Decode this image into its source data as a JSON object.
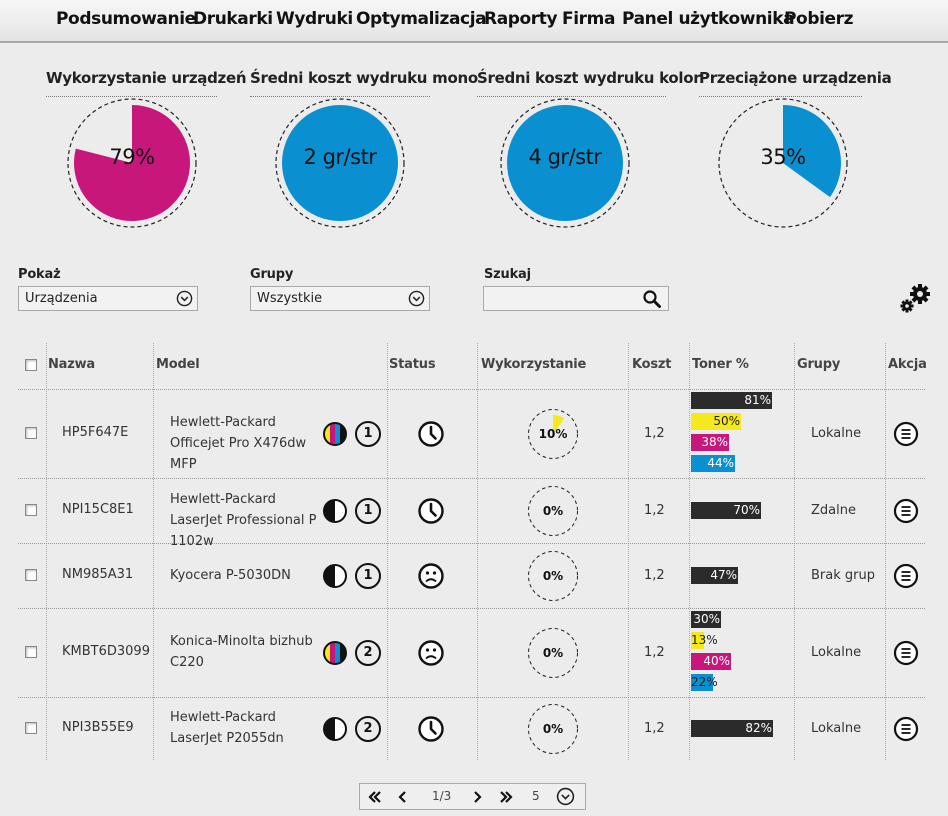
{
  "nav": [
    "Podsumowanie",
    "Drukarki",
    "Wydruki",
    "Optymalizacja",
    "Raporty",
    "Firma",
    "Panel użytkownika",
    "Pobierz"
  ],
  "kpis": [
    {
      "title": "Wykorzystanie urządzeń",
      "value": "79%",
      "fraction": 0.79,
      "color": "#c7177b",
      "kind": "pie"
    },
    {
      "title": "Średni koszt wydruku mono",
      "value": "2 gr/str",
      "kind": "full",
      "color": "#0a8fd0"
    },
    {
      "title": "Średni koszt wydruku kolor",
      "value": "4 gr/str",
      "kind": "full",
      "color": "#0a8fd0"
    },
    {
      "title": "Przeciążone urządzenia",
      "value": "35%",
      "fraction": 0.35,
      "color": "#0a8fd0",
      "kind": "pie"
    }
  ],
  "filters": {
    "show_label": "Pokaż",
    "show_value": "Urządzenia",
    "groups_label": "Grupy",
    "groups_value": "Wszystkie",
    "search_label": "Szukaj",
    "search_value": ""
  },
  "table": {
    "headers": [
      "Nazwa",
      "Model",
      "Status",
      "Wykorzystanie",
      "Koszt",
      "Toner %",
      "Grupy",
      "Akcja"
    ],
    "rows": [
      {
        "name": "HP5F647E",
        "model": "Hewlett-Packard Officejet Pro X476dw MFP",
        "color_type": "color",
        "trays": "1",
        "status": "clock",
        "usage": "10%",
        "usage_fraction": 0.1,
        "cost": "1,2",
        "group": "Lokalne",
        "toners": [
          {
            "label": "81%",
            "v": 81,
            "c": "#2b2b2b",
            "t": "#fff"
          },
          {
            "label": "50%",
            "v": 50,
            "c": "#f5e81c",
            "t": "#222"
          },
          {
            "label": "38%",
            "v": 38,
            "c": "#c7177b",
            "t": "#fff"
          },
          {
            "label": "44%",
            "v": 44,
            "c": "#0a8fd0",
            "t": "#fff"
          }
        ]
      },
      {
        "name": "NPI15C8E1",
        "model": "Hewlett-Packard LaserJet Professional P 1102w",
        "color_type": "mono",
        "trays": "1",
        "status": "clock",
        "usage": "0%",
        "usage_fraction": 0,
        "cost": "1,2",
        "group": "Zdalne",
        "toners": [
          {
            "label": "70%",
            "v": 70,
            "c": "#2b2b2b",
            "t": "#fff"
          }
        ]
      },
      {
        "name": "NM985A31",
        "model": "Kyocera P-5030DN",
        "color_type": "mono",
        "trays": "1",
        "status": "sad",
        "usage": "0%",
        "usage_fraction": 0,
        "cost": "1,2",
        "group": "Brak grup",
        "toners": [
          {
            "label": "47%",
            "v": 47,
            "c": "#2b2b2b",
            "t": "#fff"
          }
        ]
      },
      {
        "name": "KMBT6D3099",
        "model": "Konica-Minolta bizhub C220",
        "color_type": "color",
        "trays": "2",
        "status": "sad",
        "usage": "0%",
        "usage_fraction": 0,
        "cost": "1,2",
        "group": "Lokalne",
        "toners": [
          {
            "label": "30%",
            "v": 30,
            "c": "#2b2b2b",
            "t": "#fff"
          },
          {
            "label": "13%",
            "v": 13,
            "c": "#f5e81c",
            "t": "#222"
          },
          {
            "label": "40%",
            "v": 40,
            "c": "#c7177b",
            "t": "#fff"
          },
          {
            "label": "22%",
            "v": 22,
            "c": "#0a8fd0",
            "t": "#222"
          }
        ]
      },
      {
        "name": "NPI3B55E9",
        "model": "Hewlett-Packard LaserJet P2055dn",
        "color_type": "mono",
        "trays": "2",
        "status": "clock",
        "usage": "0%",
        "usage_fraction": 0,
        "cost": "1,2",
        "group": "Lokalne",
        "toners": [
          {
            "label": "82%",
            "v": 82,
            "c": "#2b2b2b",
            "t": "#fff"
          }
        ]
      }
    ]
  },
  "pager": {
    "page": "1/3",
    "per_page": "5"
  },
  "icons": {
    "first": "double-chevron-left-icon",
    "prev": "chevron-left-icon",
    "next": "chevron-right-icon",
    "last": "double-chevron-right-icon"
  }
}
